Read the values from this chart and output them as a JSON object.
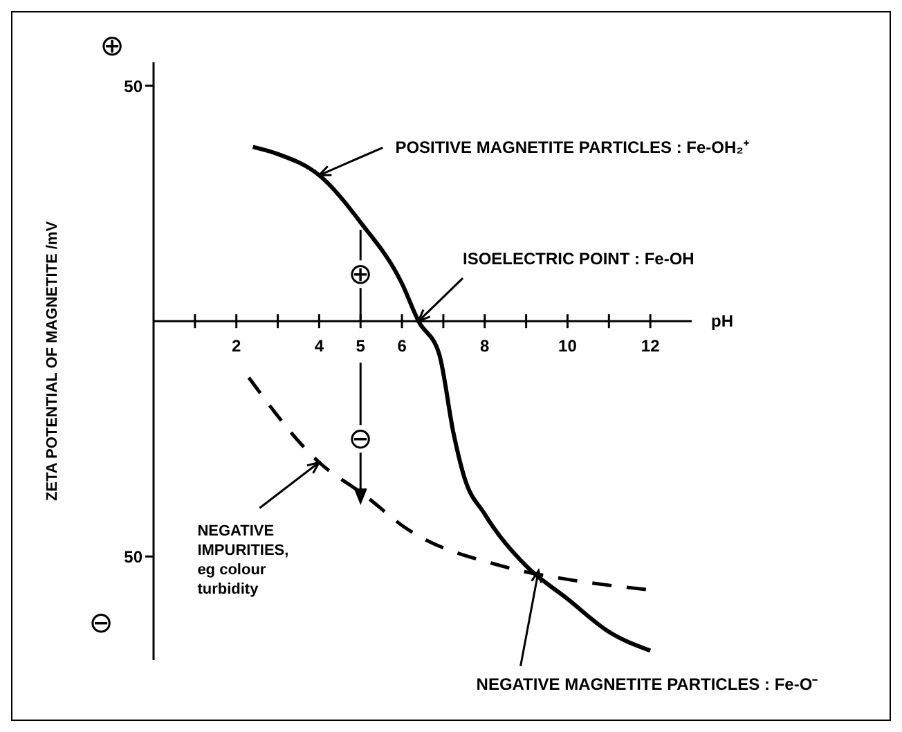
{
  "chart_data": {
    "type": "line",
    "xlabel": "pH",
    "ylabel": "ZETA POTENTIAL OF MAGNETITE /mV",
    "marker": "none",
    "xlim": [
      0,
      13
    ],
    "xticks": [
      {
        "value": 1,
        "label": null
      },
      2,
      {
        "value": 3,
        "label": null
      },
      4,
      5,
      6,
      {
        "value": 7,
        "label": null
      },
      8,
      {
        "value": 9,
        "label": null
      },
      10,
      {
        "value": 11,
        "label": null
      },
      12
    ],
    "ylim": [
      -72,
      55
    ],
    "yticks": [
      {
        "value": -50,
        "label": "50"
      },
      {
        "value": 50,
        "label": "50"
      }
    ],
    "series": [
      {
        "color": "#000000",
        "line_style": "solid",
        "x": [
          2.4,
          3,
          4,
          5,
          6,
          6.4,
          6.9,
          7.25,
          7.5,
          8,
          9,
          10,
          11,
          12
        ],
        "values": [
          37,
          35.5,
          31,
          21,
          8,
          0,
          -7,
          -24,
          -33,
          -41,
          -52,
          -59,
          -66,
          -70
        ]
      },
      {
        "color": "#000000",
        "line_style": "dashed",
        "x": [
          2.3,
          4,
          5.1,
          6.1,
          8.4,
          10.1,
          11.9
        ],
        "values": [
          -12,
          -30,
          -37,
          -44,
          -52,
          -55,
          -57
        ]
      }
    ],
    "annotations": [
      "⊕",
      "⊖",
      {
        "text": "⊕",
        "x": 5,
        "y": 10
      },
      {
        "text": "⊖",
        "x": 5,
        "y": -25
      },
      {
        "text": "POSITIVE MAGNETITE PARTICLES : Fe-OH₂⁺",
        "x": 4,
        "y": 31
      },
      {
        "text": "ISOELECTRIC POINT : Fe-OH",
        "x": 6.4,
        "y": 0
      },
      {
        "text": "NEGATIVE IMPURITIES, eg colour turbidity",
        "x": 4,
        "y": -30
      },
      {
        "text": "NEGATIVE MAGNETITE PARTICLES : Fe-O⁻",
        "x": 9.3,
        "y": -53
      }
    ]
  }
}
